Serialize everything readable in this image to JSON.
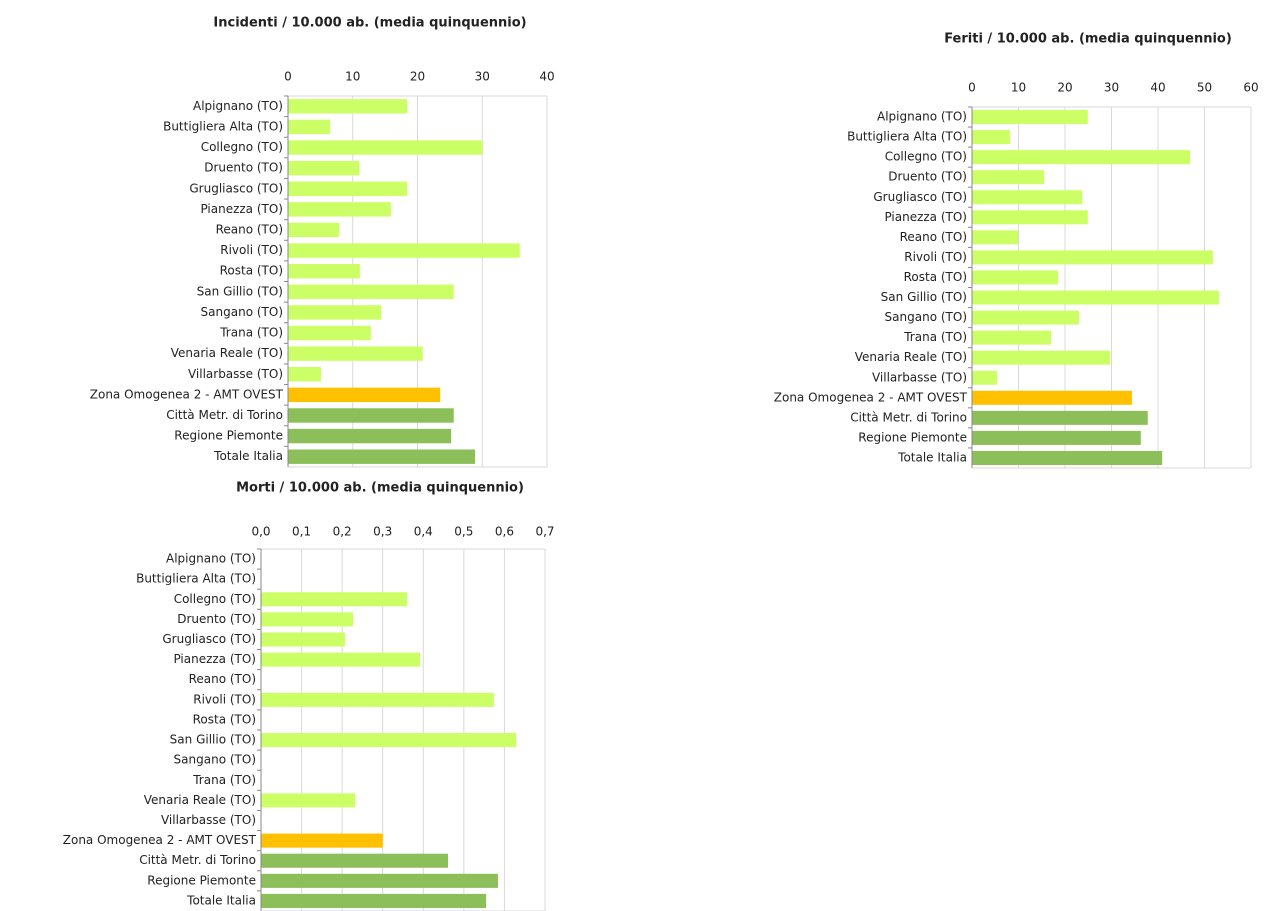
{
  "chart_data": [
    {
      "type": "bar",
      "title": "Incidenti / 10.000  ab. (media quinquennio)",
      "categories": [
        "Alpignano (TO)",
        "Buttigliera Alta (TO)",
        "Collegno (TO)",
        "Druento (TO)",
        "Grugliasco (TO)",
        "Pianezza (TO)",
        "Reano (TO)",
        "Rivoli (TO)",
        "Rosta (TO)",
        "San Gillio (TO)",
        "Sangano (TO)",
        "Trana (TO)",
        "Venaria Reale (TO)",
        "Villarbasse (TO)",
        "Zona Omogenea 2 - AMT OVEST",
        "Città Metr. di Torino",
        "Regione Piemonte",
        "Totale Italia"
      ],
      "values": [
        18.4,
        6.5,
        30.0,
        11.0,
        18.4,
        15.9,
        7.9,
        35.8,
        11.1,
        25.6,
        14.4,
        12.8,
        20.8,
        5.1,
        23.5,
        25.6,
        25.2,
        28.9
      ],
      "colors": [
        "#ccff66",
        "#ccff66",
        "#ccff66",
        "#ccff66",
        "#ccff66",
        "#ccff66",
        "#ccff66",
        "#ccff66",
        "#ccff66",
        "#ccff66",
        "#ccff66",
        "#ccff66",
        "#ccff66",
        "#ccff66",
        "#ffc000",
        "#8cbf5a",
        "#8cbf5a",
        "#8cbf5a"
      ],
      "xlim": [
        0,
        40
      ],
      "xticks": [
        0,
        10,
        20,
        30,
        40
      ],
      "grid": true
    },
    {
      "type": "bar",
      "title": "Feriti / 10.000  ab. (media quinquennio)",
      "categories": [
        "Alpignano (TO)",
        "Buttigliera Alta (TO)",
        "Collegno (TO)",
        "Druento (TO)",
        "Grugliasco (TO)",
        "Pianezza (TO)",
        "Reano (TO)",
        "Rivoli (TO)",
        "Rosta (TO)",
        "San Gillio (TO)",
        "Sangano (TO)",
        "Trana (TO)",
        "Venaria Reale (TO)",
        "Villarbasse (TO)",
        "Zona Omogenea 2 - AMT OVEST",
        "Città Metr. di Torino",
        "Regione Piemonte",
        "Totale Italia"
      ],
      "values": [
        24.9,
        8.2,
        46.9,
        15.5,
        23.7,
        24.9,
        9.9,
        51.8,
        18.5,
        53.1,
        23.0,
        17.0,
        29.7,
        5.4,
        34.4,
        37.8,
        36.3,
        40.9
      ],
      "colors": [
        "#ccff66",
        "#ccff66",
        "#ccff66",
        "#ccff66",
        "#ccff66",
        "#ccff66",
        "#ccff66",
        "#ccff66",
        "#ccff66",
        "#ccff66",
        "#ccff66",
        "#ccff66",
        "#ccff66",
        "#ccff66",
        "#ffc000",
        "#8cbf5a",
        "#8cbf5a",
        "#8cbf5a"
      ],
      "xlim": [
        0,
        60
      ],
      "xticks": [
        0,
        10,
        20,
        30,
        40,
        50,
        60
      ],
      "grid": true
    },
    {
      "type": "bar",
      "title": "Morti / 10.000  ab. (media quinquennio)",
      "categories": [
        "Alpignano (TO)",
        "Buttigliera Alta (TO)",
        "Collegno (TO)",
        "Druento (TO)",
        "Grugliasco (TO)",
        "Pianezza (TO)",
        "Reano (TO)",
        "Rivoli (TO)",
        "Rosta (TO)",
        "San Gillio (TO)",
        "Sangano (TO)",
        "Trana (TO)",
        "Venaria Reale (TO)",
        "Villarbasse (TO)",
        "Zona Omogenea 2 - AMT OVEST",
        "Città Metr. di Torino",
        "Regione Piemonte",
        "Totale Italia"
      ],
      "values": [
        0,
        0,
        0.36,
        0.227,
        0.207,
        0.392,
        0,
        0.574,
        0,
        0.629,
        0,
        0,
        0.232,
        0,
        0.3,
        0.461,
        0.584,
        0.555
      ],
      "colors": [
        "#ccff66",
        "#ccff66",
        "#ccff66",
        "#ccff66",
        "#ccff66",
        "#ccff66",
        "#ccff66",
        "#ccff66",
        "#ccff66",
        "#ccff66",
        "#ccff66",
        "#ccff66",
        "#ccff66",
        "#ccff66",
        "#ffc000",
        "#8cbf5a",
        "#8cbf5a",
        "#8cbf5a"
      ],
      "xlim": [
        0,
        0.7
      ],
      "xticks": [
        {
          "value": 0,
          "label": "0,0"
        },
        {
          "value": 0.1,
          "label": "0,1"
        },
        {
          "value": 0.2,
          "label": "0,2"
        },
        {
          "value": 0.3,
          "label": "0,3"
        },
        {
          "value": 0.4,
          "label": "0,4"
        },
        {
          "value": 0.5,
          "label": "0,5"
        },
        {
          "value": 0.6,
          "label": "0,6"
        },
        {
          "value": 0.7,
          "label": "0,7"
        }
      ],
      "grid": true
    }
  ]
}
